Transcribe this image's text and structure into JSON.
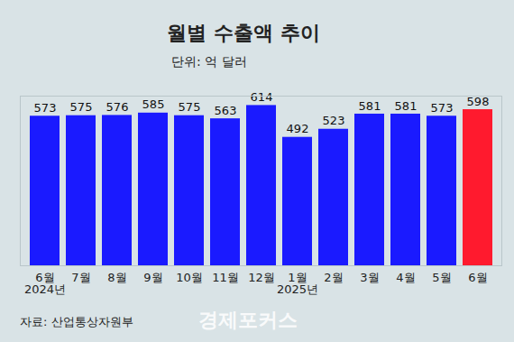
{
  "chart_data": {
    "type": "bar",
    "title": "월별 수출액 추이",
    "subtitle": "단위: 억 달러",
    "categories": [
      "6월\n2024년",
      "7월",
      "8월",
      "9월",
      "10월",
      "11월",
      "12월",
      "1월\n2025년",
      "2월",
      "3월",
      "4월",
      "5월",
      "6월"
    ],
    "values": [
      573,
      575,
      576,
      585,
      575,
      563,
      614,
      492,
      523,
      581,
      581,
      573,
      598
    ],
    "colors": [
      "#1a1aff",
      "#1a1aff",
      "#1a1aff",
      "#1a1aff",
      "#1a1aff",
      "#1a1aff",
      "#1a1aff",
      "#1a1aff",
      "#1a1aff",
      "#1a1aff",
      "#1a1aff",
      "#1a1aff",
      "#ff1a2e"
    ],
    "ylim": [
      0,
      650
    ],
    "yticks": [],
    "grid": false,
    "data_labels": true,
    "tick_labels": "x",
    "source": "자료: 산업통상자원부",
    "logo": "경제포커스"
  }
}
